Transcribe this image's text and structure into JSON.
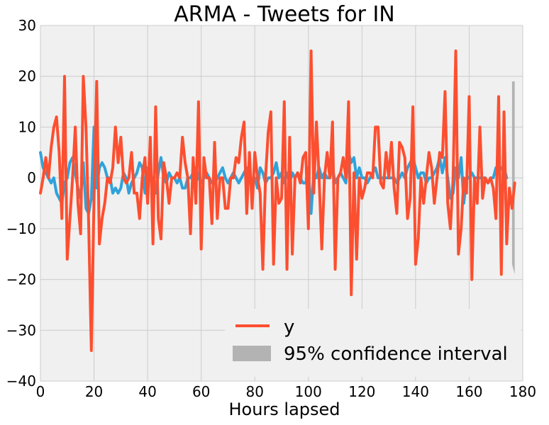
{
  "chart_data": {
    "type": "line",
    "title": "ARMA - Tweets for IN",
    "xlabel": "Hours lapsed",
    "ylabel": "",
    "xlim": [
      0,
      180
    ],
    "ylim": [
      -40,
      30
    ],
    "xticks": [
      0,
      20,
      40,
      60,
      80,
      100,
      120,
      140,
      160,
      180
    ],
    "yticks": [
      -40,
      -30,
      -20,
      -10,
      0,
      10,
      20,
      30
    ],
    "grid": true,
    "legend_position": "lower-right",
    "colors": {
      "y": "#fc4f30",
      "fitted": "#30a2da",
      "ci": "#b3b3b3",
      "plot_bg": "#f0f0f0",
      "grid": "#cbcbcb"
    },
    "series": [
      {
        "name": "y",
        "role": "observed",
        "x_start": 0,
        "values": [
          -3,
          0,
          4,
          0,
          6,
          10,
          12,
          5,
          -8,
          20,
          -16,
          -8,
          0,
          10,
          -5,
          -11,
          20,
          10,
          -9,
          -34,
          -4,
          19,
          -13,
          -8,
          -5,
          0,
          -1,
          2,
          10,
          3,
          8,
          0,
          -1,
          0,
          5,
          -3,
          -3,
          -8,
          0,
          4,
          -5,
          8,
          -13,
          14,
          -8,
          -12,
          3,
          0,
          -5,
          0,
          0,
          1,
          0,
          8,
          3,
          0,
          -11,
          4,
          -5,
          15,
          -14,
          4,
          0,
          0,
          -9,
          7,
          -8,
          0,
          0,
          -6,
          -6,
          0,
          0,
          4,
          3,
          8,
          11,
          -7,
          5,
          -6,
          5,
          0,
          -3,
          -18,
          0,
          9,
          13,
          -17,
          0,
          -5,
          -4,
          15,
          -18,
          8,
          -15,
          0,
          1,
          -1,
          4,
          5,
          -10,
          25,
          -3,
          11,
          0,
          -14,
          0,
          5,
          0,
          11,
          -18,
          0,
          1,
          4,
          0,
          15,
          -23,
          1,
          -16,
          0,
          -4,
          -2,
          1,
          1,
          0,
          10,
          10,
          -1,
          -2,
          5,
          0,
          7,
          -2,
          -7,
          7,
          6,
          4,
          -8,
          -4,
          14,
          -17,
          -12,
          0,
          -5,
          0,
          5,
          2,
          -5,
          0,
          5,
          4,
          17,
          -5,
          -10,
          0,
          25,
          -15,
          -10,
          0,
          -3,
          16,
          -20,
          0,
          -5,
          10,
          -4,
          0,
          -1,
          0,
          -2,
          -8,
          16,
          -19,
          13,
          -13,
          -2,
          -6,
          -1
        ]
      },
      {
        "name": "",
        "role": "fitted",
        "x_start": 0,
        "values": [
          5,
          2,
          1,
          0,
          -1,
          0,
          -3,
          -4,
          -5,
          -1,
          0,
          3,
          4,
          1,
          -2,
          -4,
          3,
          -6,
          -7,
          -4,
          10,
          -2,
          2,
          3,
          2,
          0,
          0,
          -3,
          -2,
          -3,
          -2,
          1,
          0,
          -3,
          -1,
          0,
          1,
          3,
          2,
          -3,
          2,
          1,
          -1,
          -3,
          1,
          4,
          0,
          -1,
          1,
          0,
          0,
          -1,
          0,
          -2,
          -2,
          0,
          0,
          1,
          2,
          0,
          -1,
          0,
          1,
          0,
          -1,
          -1,
          0,
          1,
          2,
          0,
          -1,
          0,
          1,
          0,
          -1,
          0,
          1,
          2,
          0,
          -1,
          0,
          -2,
          2,
          1,
          -1,
          0,
          0,
          1,
          3,
          0,
          1,
          -1,
          1,
          -1,
          1,
          0,
          1,
          0,
          -1,
          -1,
          2,
          -7,
          1,
          0,
          2,
          0,
          1,
          0,
          0,
          2,
          -1,
          0,
          1,
          0,
          -1,
          5,
          3,
          4,
          0,
          2,
          0,
          0,
          -1,
          0,
          1,
          2,
          0,
          0,
          0,
          0,
          0,
          0,
          0,
          -1,
          0,
          1,
          0,
          2,
          3,
          4,
          2,
          0,
          1,
          1,
          -1,
          0,
          0,
          1,
          2,
          4,
          1,
          4,
          0,
          -4,
          -3,
          2,
          0,
          4,
          -5,
          0,
          0,
          1,
          0,
          0,
          0,
          0,
          0,
          -1,
          0,
          0,
          2,
          1,
          2,
          2,
          0
        ]
      }
    ],
    "confidence_interval": {
      "name": "95% confidence interval",
      "x": [
        176,
        177
      ],
      "upper": [
        19,
        19
      ],
      "lower": [
        -17,
        -19
      ]
    },
    "legend": [
      {
        "label": "y",
        "kind": "line"
      },
      {
        "label": "95% confidence interval",
        "kind": "patch"
      }
    ]
  }
}
